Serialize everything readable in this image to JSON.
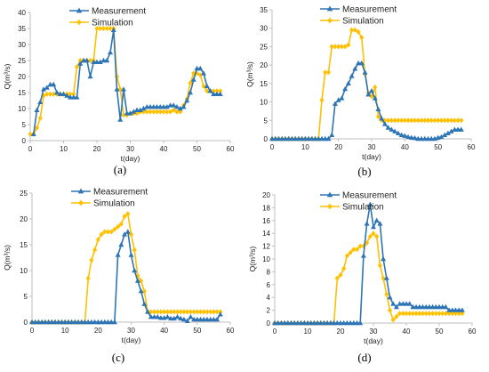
{
  "colors": {
    "measurement": "#2E75B6",
    "simulation": "#FFC000",
    "axis": "#bfbfbf"
  },
  "chart_data": [
    {
      "type": "line",
      "panel_label": "(a)",
      "xlabel": "t(day)",
      "ylabel": "Q(m³/s)",
      "xlim": [
        0,
        60
      ],
      "xticks": [
        0,
        10,
        20,
        30,
        40,
        50,
        60
      ],
      "ylim": [
        0,
        40
      ],
      "yticks": [
        0,
        5,
        10,
        15,
        20,
        25,
        30,
        35,
        40
      ],
      "legend": "top-left",
      "series": [
        {
          "name": "Measurement",
          "key": "measurement",
          "marker": "triangle",
          "x": [
            1,
            2,
            3,
            4,
            5,
            6,
            7,
            8,
            9,
            10,
            11,
            12,
            13,
            14,
            15,
            16,
            17,
            18,
            19,
            20,
            21,
            22,
            23,
            24,
            25,
            26,
            27,
            28,
            29,
            30,
            31,
            32,
            33,
            34,
            35,
            36,
            37,
            38,
            39,
            40,
            41,
            42,
            43,
            44,
            45,
            46,
            47,
            48,
            49,
            50,
            51,
            52,
            53,
            54,
            55,
            56,
            57
          ],
          "y": [
            2,
            9.5,
            12,
            16,
            16.5,
            17.5,
            17.5,
            15,
            14.5,
            14.5,
            14,
            13.5,
            13.5,
            13.5,
            24,
            25,
            25,
            20,
            24.5,
            24.5,
            24.5,
            25,
            25,
            27.5,
            34.5,
            16,
            6.5,
            16,
            8.5,
            8.5,
            9,
            9.5,
            9.5,
            10,
            10.5,
            10.5,
            10.5,
            10.5,
            10.5,
            10.5,
            10.5,
            11,
            11,
            10.5,
            10,
            10.5,
            12.5,
            15,
            19,
            22.5,
            22.5,
            21,
            17,
            15.5,
            14.5,
            14.5,
            14.5
          ]
        },
        {
          "name": "Simulation",
          "key": "simulation",
          "marker": "diamond",
          "x": [
            0,
            1,
            2,
            3,
            4,
            5,
            6,
            7,
            8,
            9,
            10,
            11,
            12,
            13,
            14,
            15,
            16,
            17,
            18,
            19,
            20,
            21,
            22,
            23,
            24,
            25,
            26,
            27,
            28,
            29,
            30,
            31,
            32,
            33,
            34,
            35,
            36,
            37,
            38,
            39,
            40,
            41,
            42,
            43,
            44,
            45,
            46,
            47,
            48,
            49,
            50,
            51,
            52,
            53,
            54,
            55,
            56,
            57
          ],
          "y": [
            2,
            2,
            4,
            7,
            14,
            14.5,
            14.5,
            14.5,
            14.5,
            14.5,
            14.5,
            14.5,
            14.5,
            14.5,
            23,
            25,
            25,
            25,
            25,
            25,
            35,
            35,
            35,
            35,
            35,
            35,
            20,
            16,
            8,
            8,
            8.5,
            8.5,
            8.5,
            9,
            9,
            9,
            9,
            9,
            9,
            9,
            9,
            9,
            9,
            9.5,
            9,
            9,
            11,
            13,
            18,
            21,
            21,
            20.5,
            17,
            15.5,
            15.5,
            15.5,
            15.5,
            15.5
          ]
        }
      ]
    },
    {
      "type": "line",
      "panel_label": "(b)",
      "xlabel": "t(day)",
      "ylabel": "Q(m³/s)",
      "xlim": [
        0,
        60
      ],
      "xticks": [
        0,
        10,
        20,
        30,
        40,
        50,
        60
      ],
      "ylim": [
        0,
        35
      ],
      "yticks": [
        0,
        5,
        10,
        15,
        20,
        25,
        30,
        35
      ],
      "legend": "top-left",
      "series": [
        {
          "name": "Measurement",
          "key": "measurement",
          "marker": "triangle",
          "x": [
            0,
            1,
            2,
            3,
            4,
            5,
            6,
            7,
            8,
            9,
            10,
            11,
            12,
            13,
            14,
            15,
            16,
            17,
            18,
            19,
            20,
            21,
            22,
            23,
            24,
            25,
            26,
            27,
            28,
            29,
            30,
            31,
            32,
            33,
            34,
            35,
            36,
            37,
            38,
            39,
            40,
            41,
            42,
            43,
            44,
            45,
            46,
            47,
            48,
            49,
            50,
            51,
            52,
            53,
            54,
            55,
            56,
            57
          ],
          "y": [
            0,
            0,
            0,
            0,
            0,
            0,
            0,
            0,
            0,
            0,
            0,
            0,
            0,
            0,
            0,
            0,
            0,
            0,
            1,
            9.5,
            10.5,
            11,
            13.5,
            15,
            17,
            19,
            20.5,
            20.5,
            18,
            12,
            13,
            11,
            8,
            5.5,
            4,
            3,
            2.5,
            2,
            1.5,
            1,
            0.8,
            0.5,
            0.3,
            0.2,
            0,
            0,
            0,
            0,
            0,
            0,
            0.3,
            0.5,
            1,
            1.5,
            2,
            2.5,
            2.5,
            2.5
          ]
        },
        {
          "name": "Simulation",
          "key": "simulation",
          "marker": "diamond",
          "x": [
            0,
            1,
            2,
            3,
            4,
            5,
            6,
            7,
            8,
            9,
            10,
            11,
            12,
            13,
            14,
            15,
            16,
            17,
            18,
            19,
            20,
            21,
            22,
            23,
            24,
            25,
            26,
            27,
            28,
            29,
            30,
            31,
            32,
            33,
            34,
            35,
            36,
            37,
            38,
            39,
            40,
            41,
            42,
            43,
            44,
            45,
            46,
            47,
            48,
            49,
            50,
            51,
            52,
            53,
            54,
            55,
            56,
            57
          ],
          "y": [
            0,
            0,
            0,
            0,
            0,
            0,
            0,
            0,
            0,
            0,
            0,
            0,
            0,
            0,
            0,
            10.5,
            18,
            18,
            25,
            25,
            25,
            25,
            25,
            25.5,
            29.5,
            29.5,
            29,
            27.5,
            17.5,
            12.5,
            11.5,
            14,
            6,
            5,
            5,
            5,
            5,
            5,
            5,
            5,
            5,
            5,
            5,
            5,
            5,
            5,
            5,
            5,
            5,
            5,
            5,
            5,
            5,
            5,
            5,
            5,
            5,
            5
          ]
        }
      ]
    },
    {
      "type": "line",
      "panel_label": "(c)",
      "xlabel": "t(day)",
      "ylabel": "Q(m³/s)",
      "xlim": [
        0,
        60
      ],
      "xticks": [
        0,
        10,
        20,
        30,
        40,
        50,
        60
      ],
      "ylim": [
        0,
        25
      ],
      "yticks": [
        0,
        5,
        10,
        15,
        20,
        25
      ],
      "legend": "top-left",
      "series": [
        {
          "name": "Measurement",
          "key": "measurement",
          "marker": "triangle",
          "x": [
            0,
            1,
            2,
            3,
            4,
            5,
            6,
            7,
            8,
            9,
            10,
            11,
            12,
            13,
            14,
            15,
            16,
            17,
            18,
            19,
            20,
            21,
            22,
            23,
            24,
            25,
            26,
            27,
            28,
            29,
            30,
            31,
            32,
            33,
            34,
            35,
            36,
            37,
            38,
            39,
            40,
            41,
            42,
            43,
            44,
            45,
            46,
            47,
            48,
            49,
            50,
            51,
            52,
            53,
            54,
            55,
            56,
            57
          ],
          "y": [
            0,
            0,
            0,
            0,
            0,
            0,
            0,
            0,
            0,
            0,
            0,
            0,
            0,
            0,
            0,
            0,
            0,
            0,
            0,
            0,
            0,
            0,
            0,
            0,
            0,
            0,
            13,
            15,
            17,
            17.5,
            13,
            10,
            8,
            6,
            3.5,
            2,
            1,
            1,
            1,
            0.8,
            0.8,
            1,
            0.7,
            0.7,
            1,
            0.7,
            0.5,
            0.2,
            1,
            0.5,
            0.5,
            0.5,
            0.5,
            0.5,
            0.5,
            0.5,
            0.5,
            1.5
          ]
        },
        {
          "name": "Simulation",
          "key": "simulation",
          "marker": "diamond",
          "x": [
            0,
            1,
            2,
            3,
            4,
            5,
            6,
            7,
            8,
            9,
            10,
            11,
            12,
            13,
            14,
            15,
            16,
            17,
            18,
            19,
            20,
            21,
            22,
            23,
            24,
            25,
            26,
            27,
            28,
            29,
            30,
            31,
            32,
            33,
            34,
            35,
            36,
            37,
            38,
            39,
            40,
            41,
            42,
            43,
            44,
            45,
            46,
            47,
            48,
            49,
            50,
            51,
            52,
            53,
            54,
            55,
            56,
            57
          ],
          "y": [
            0,
            0,
            0,
            0,
            0,
            0,
            0,
            0,
            0,
            0,
            0,
            0,
            0,
            0,
            0,
            0,
            0,
            8.5,
            12,
            14,
            16,
            17,
            17.5,
            17.5,
            17.5,
            18,
            18.5,
            19,
            20.5,
            21,
            17,
            14,
            9,
            8,
            6,
            2,
            2,
            2,
            2,
            2,
            2,
            2,
            2,
            2,
            2,
            2,
            2,
            2,
            2,
            2,
            2,
            2,
            2,
            2,
            2,
            2,
            2,
            2
          ]
        }
      ]
    },
    {
      "type": "line",
      "panel_label": "(d)",
      "xlabel": "t(day)",
      "ylabel": "Q(m³/s)",
      "xlim": [
        0,
        60
      ],
      "xticks": [
        0,
        10,
        20,
        30,
        40,
        50,
        60
      ],
      "ylim": [
        0,
        20
      ],
      "yticks": [
        0,
        2,
        4,
        6,
        8,
        10,
        12,
        14,
        16,
        18,
        20
      ],
      "legend": "top-left",
      "series": [
        {
          "name": "Measurement",
          "key": "measurement",
          "marker": "triangle",
          "x": [
            0,
            1,
            2,
            3,
            4,
            5,
            6,
            7,
            8,
            9,
            10,
            11,
            12,
            13,
            14,
            15,
            16,
            17,
            18,
            19,
            20,
            21,
            22,
            23,
            24,
            25,
            26,
            27,
            28,
            29,
            30,
            31,
            32,
            33,
            34,
            35,
            36,
            37,
            38,
            39,
            40,
            41,
            42,
            43,
            44,
            45,
            46,
            47,
            48,
            49,
            50,
            51,
            52,
            53,
            54,
            55,
            56,
            57
          ],
          "y": [
            0,
            0,
            0,
            0,
            0,
            0,
            0,
            0,
            0,
            0,
            0,
            0,
            0,
            0,
            0,
            0,
            0,
            0,
            0,
            0,
            0,
            0,
            0,
            0,
            0,
            0,
            0,
            10.5,
            15.5,
            18.5,
            15,
            16,
            15.5,
            10,
            7,
            4,
            3,
            2.5,
            3,
            3,
            3,
            3,
            2.5,
            2.5,
            2.5,
            2.5,
            2.5,
            2.5,
            2.5,
            2.5,
            2.5,
            2.5,
            2.5,
            2,
            2,
            2,
            2,
            2
          ]
        },
        {
          "name": "Simulation",
          "key": "simulation",
          "marker": "diamond",
          "x": [
            0,
            1,
            2,
            3,
            4,
            5,
            6,
            7,
            8,
            9,
            10,
            11,
            12,
            13,
            14,
            15,
            16,
            17,
            18,
            19,
            20,
            21,
            22,
            23,
            24,
            25,
            26,
            27,
            28,
            29,
            30,
            31,
            32,
            33,
            34,
            35,
            36,
            37,
            38,
            39,
            40,
            41,
            42,
            43,
            44,
            45,
            46,
            47,
            48,
            49,
            50,
            51,
            52,
            53,
            54,
            55,
            56,
            57
          ],
          "y": [
            0,
            0,
            0,
            0,
            0,
            0,
            0,
            0,
            0,
            0,
            0,
            0,
            0,
            0,
            0,
            0,
            0,
            0,
            0,
            7,
            7.5,
            8.5,
            10.5,
            11,
            11.5,
            11.5,
            12,
            12,
            12.5,
            13.5,
            14,
            13.5,
            9,
            7,
            4.5,
            2,
            0.5,
            1,
            1.5,
            1.5,
            1.5,
            1.5,
            1.5,
            1.5,
            1.5,
            1.5,
            1.5,
            1.5,
            1.5,
            1.5,
            1.5,
            1.5,
            1.5,
            1.5,
            1.5,
            1.5,
            1.5,
            1.5
          ]
        }
      ]
    }
  ]
}
